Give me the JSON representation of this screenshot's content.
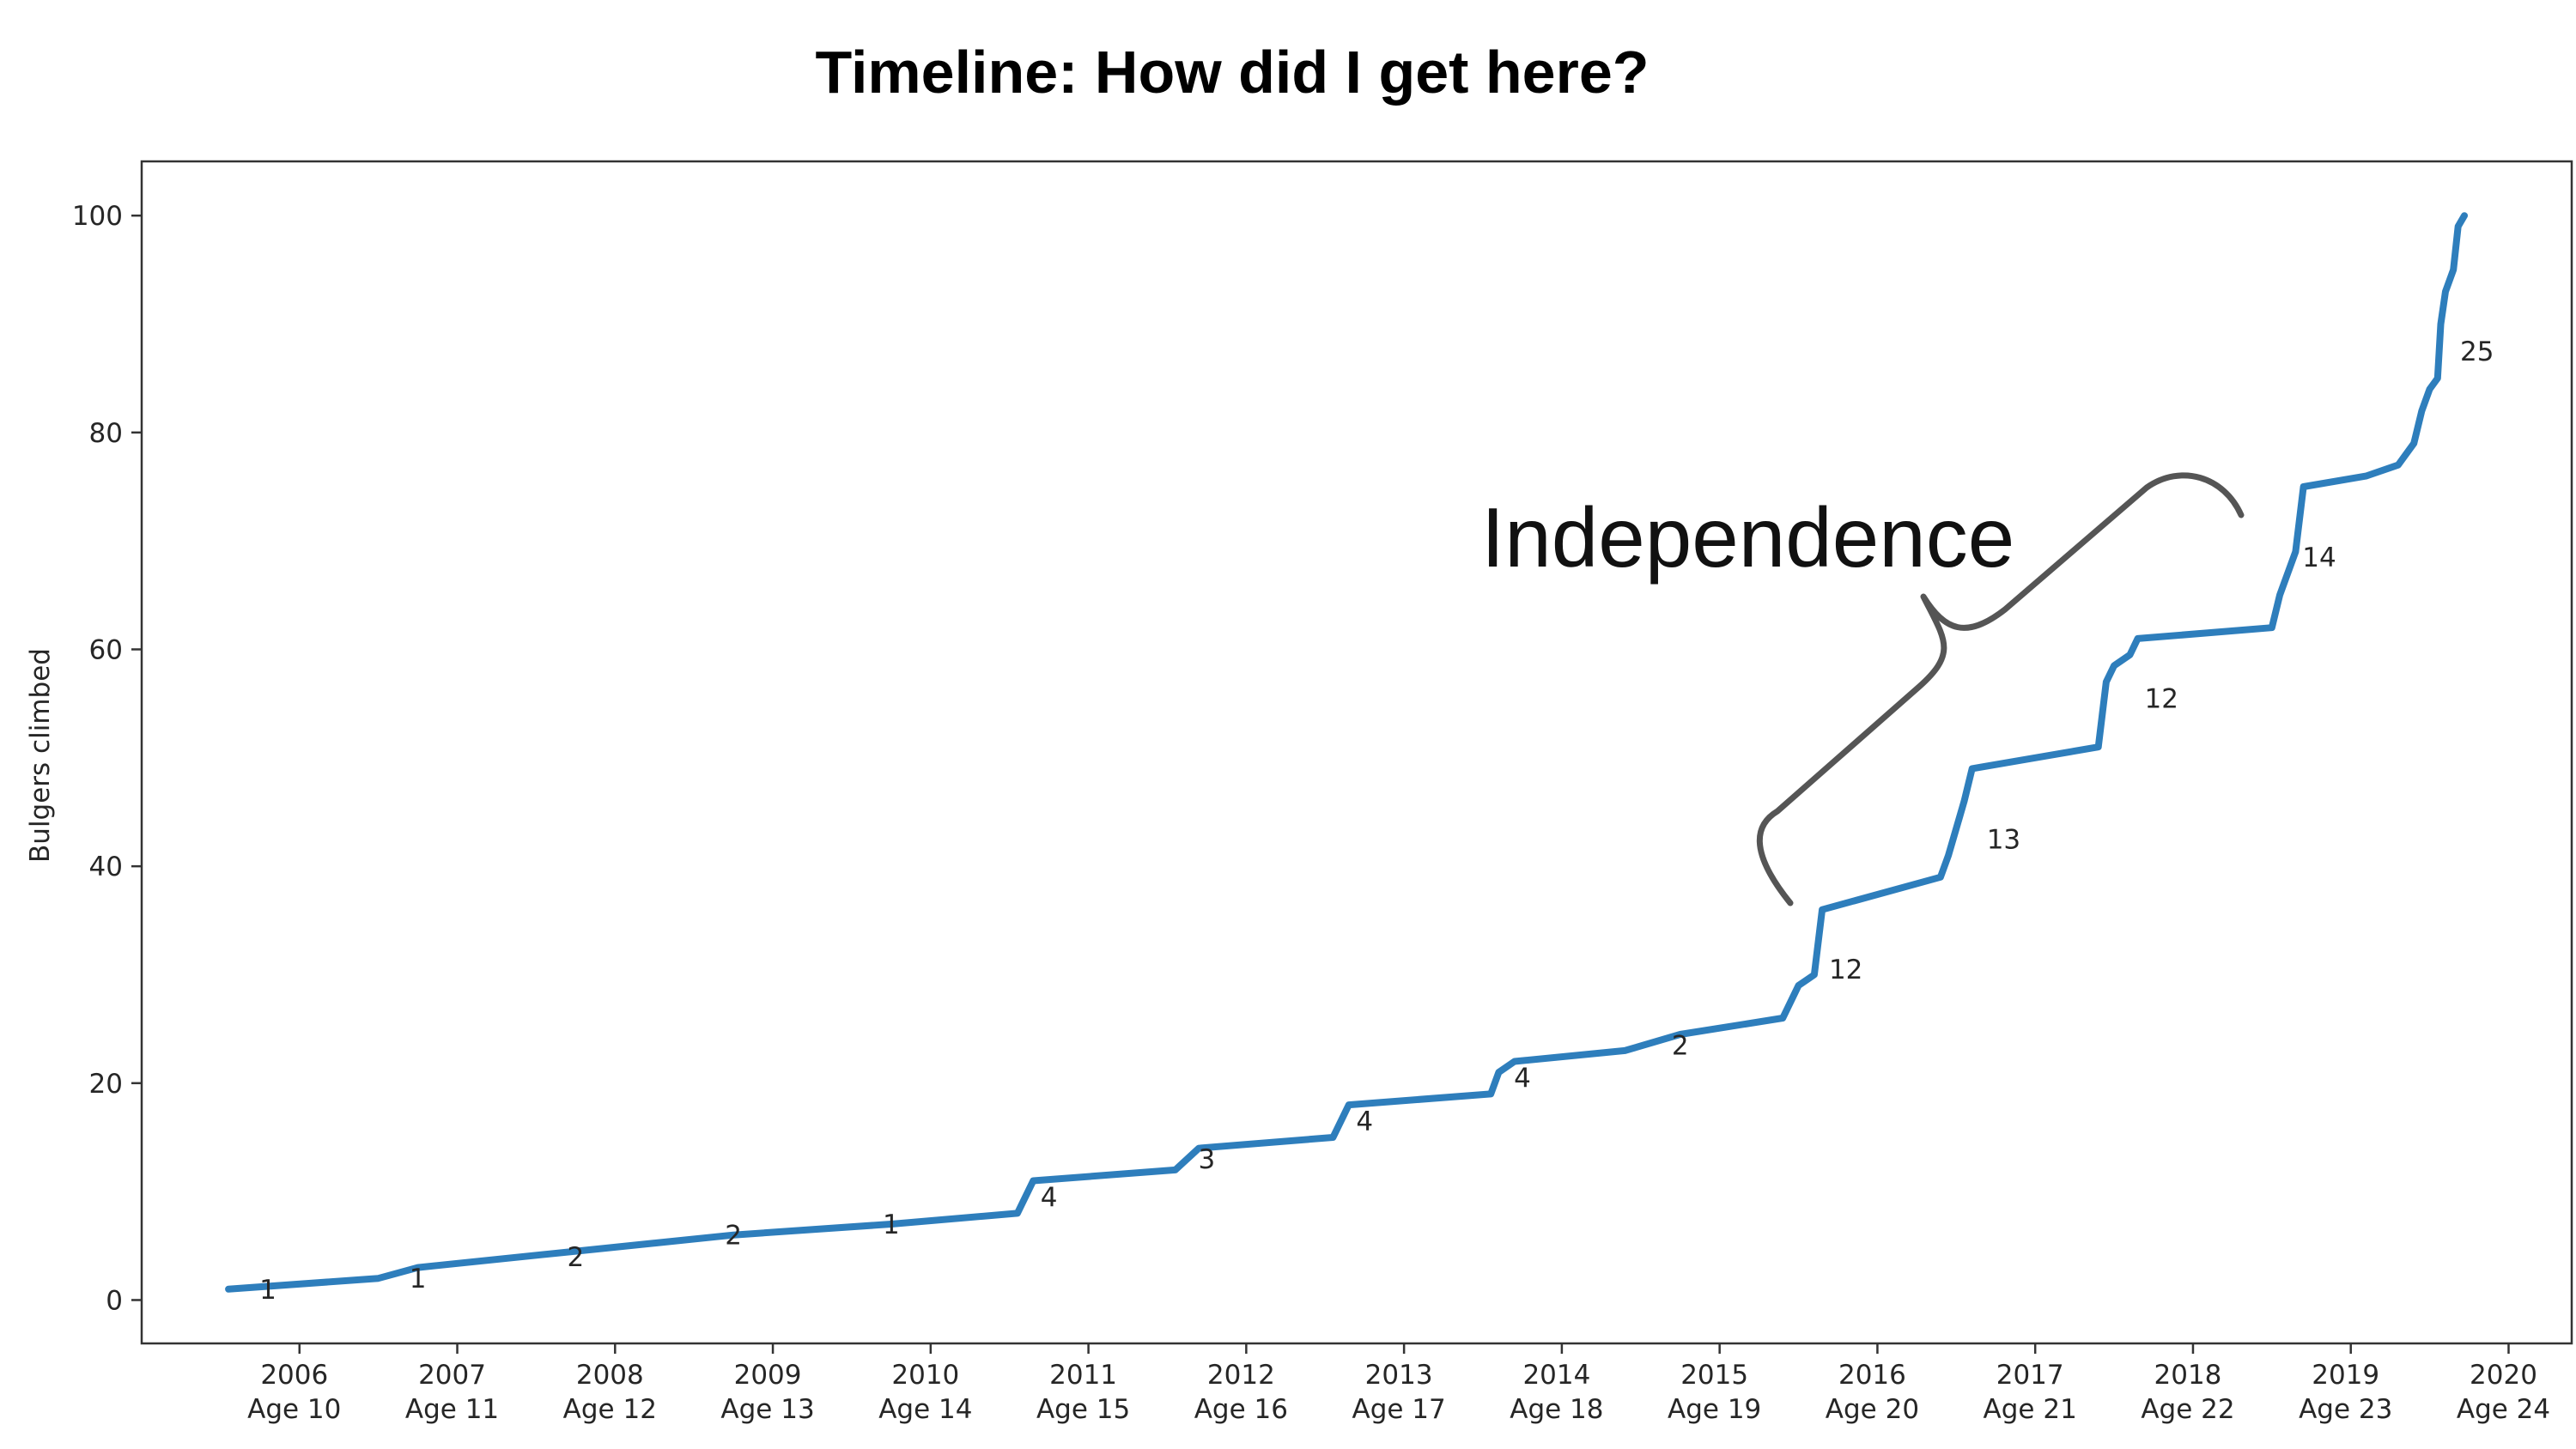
{
  "chart_data": {
    "type": "line",
    "title": "Timeline: How did I get here?",
    "ylabel": "Bulgers climbed",
    "xlabel": "",
    "ylim": [
      -4,
      105
    ],
    "xlim": [
      2005.0,
      2020.4
    ],
    "yticks": [
      0,
      20,
      40,
      60,
      80,
      100
    ],
    "xticks": [
      {
        "value": 2006,
        "year": "2006",
        "age": "Age 10"
      },
      {
        "value": 2007,
        "year": "2007",
        "age": "Age 11"
      },
      {
        "value": 2008,
        "year": "2008",
        "age": "Age 12"
      },
      {
        "value": 2009,
        "year": "2009",
        "age": "Age 13"
      },
      {
        "value": 2010,
        "year": "2010",
        "age": "Age 14"
      },
      {
        "value": 2011,
        "year": "2011",
        "age": "Age 15"
      },
      {
        "value": 2012,
        "year": "2012",
        "age": "Age 16"
      },
      {
        "value": 2013,
        "year": "2013",
        "age": "Age 17"
      },
      {
        "value": 2014,
        "year": "2014",
        "age": "Age 18"
      },
      {
        "value": 2015,
        "year": "2015",
        "age": "Age 19"
      },
      {
        "value": 2016,
        "year": "2016",
        "age": "Age 20"
      },
      {
        "value": 2017,
        "year": "2017",
        "age": "Age 21"
      },
      {
        "value": 2018,
        "year": "2018",
        "age": "Age 22"
      },
      {
        "value": 2019,
        "year": "2019",
        "age": "Age 23"
      },
      {
        "value": 2020,
        "year": "2020",
        "age": "Age 24"
      }
    ],
    "grid": false,
    "line_color": "#2e7ebc",
    "series": [
      {
        "points": [
          [
            2005.55,
            1
          ],
          [
            2006.5,
            2
          ],
          [
            2006.75,
            3
          ],
          [
            2007.75,
            4.5
          ],
          [
            2008.75,
            6
          ],
          [
            2009.75,
            7
          ],
          [
            2010.55,
            8
          ],
          [
            2010.65,
            11
          ],
          [
            2011.55,
            12
          ],
          [
            2011.7,
            14
          ],
          [
            2012.55,
            15
          ],
          [
            2012.65,
            18
          ],
          [
            2013.55,
            19
          ],
          [
            2013.6,
            21
          ],
          [
            2013.7,
            22
          ],
          [
            2014.4,
            23
          ],
          [
            2014.75,
            24.5
          ],
          [
            2015.4,
            26
          ],
          [
            2015.5,
            29
          ],
          [
            2015.6,
            30
          ],
          [
            2015.65,
            36
          ],
          [
            2016.4,
            39
          ],
          [
            2016.45,
            41
          ],
          [
            2016.55,
            46
          ],
          [
            2016.6,
            49
          ],
          [
            2017.4,
            51
          ],
          [
            2017.45,
            57
          ],
          [
            2017.5,
            58.5
          ],
          [
            2017.6,
            59.5
          ],
          [
            2017.65,
            61
          ],
          [
            2018.5,
            62
          ],
          [
            2018.55,
            65
          ],
          [
            2018.65,
            69
          ],
          [
            2018.7,
            75
          ],
          [
            2019.1,
            76
          ],
          [
            2019.3,
            77
          ],
          [
            2019.4,
            79
          ],
          [
            2019.45,
            82
          ],
          [
            2019.5,
            84
          ],
          [
            2019.55,
            85
          ],
          [
            2019.57,
            90
          ],
          [
            2019.6,
            93
          ],
          [
            2019.65,
            95
          ],
          [
            2019.68,
            99
          ],
          [
            2019.72,
            100
          ]
        ]
      }
    ],
    "data_labels": [
      {
        "x": 2005.8,
        "y": 1,
        "text": "1"
      },
      {
        "x": 2006.75,
        "y": 2,
        "text": "1"
      },
      {
        "x": 2007.75,
        "y": 4,
        "text": "2"
      },
      {
        "x": 2008.75,
        "y": 6,
        "text": "2"
      },
      {
        "x": 2009.75,
        "y": 7,
        "text": "1"
      },
      {
        "x": 2010.75,
        "y": 9.5,
        "text": "4"
      },
      {
        "x": 2011.75,
        "y": 13,
        "text": "3"
      },
      {
        "x": 2012.75,
        "y": 16.5,
        "text": "4"
      },
      {
        "x": 2013.75,
        "y": 20.5,
        "text": "4"
      },
      {
        "x": 2014.75,
        "y": 23.5,
        "text": "2"
      },
      {
        "x": 2015.8,
        "y": 30.5,
        "text": "12"
      },
      {
        "x": 2016.8,
        "y": 42.5,
        "text": "13"
      },
      {
        "x": 2017.8,
        "y": 55.5,
        "text": "12"
      },
      {
        "x": 2018.8,
        "y": 68.5,
        "text": "14"
      },
      {
        "x": 2019.8,
        "y": 87.5,
        "text": "25"
      }
    ],
    "annotation": {
      "text": "Independence"
    }
  }
}
